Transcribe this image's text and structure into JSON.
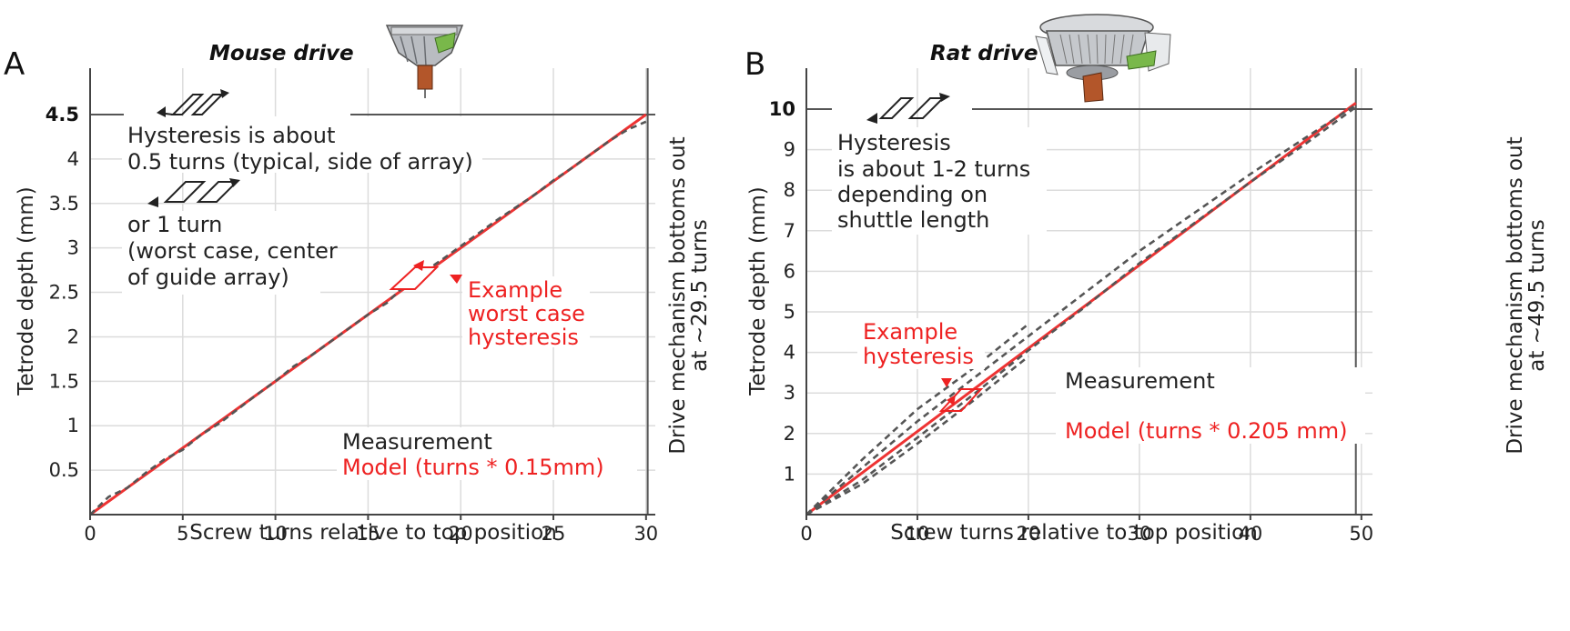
{
  "chart_data": [
    {
      "type": "line",
      "panel": "A",
      "title": "Mouse drive",
      "xlabel": "Screw turns relative to top position",
      "ylabel": "Tetrode depth (mm)",
      "xlim": [
        0,
        30.5
      ],
      "ylim": [
        0,
        4.5
      ],
      "xticks": [
        "0",
        "5",
        "10",
        "15",
        "20",
        "25",
        "30"
      ],
      "yticks": [
        "0.5",
        "1",
        "1.5",
        "2",
        "2.5",
        "3",
        "3.5",
        "4",
        "4.5"
      ],
      "bottom_out_label": "Drive mechanism bottoms out",
      "bottom_out_sub": "at ~29.5 turns",
      "bottom_out_turns": 29.5,
      "hysteresis_note": [
        "Hysteresis is about",
        "0.5 turns (typical, side of array)"
      ],
      "hysteresis_note2": [
        "or 1 turn",
        "(worst case, center",
        "of guide array)"
      ],
      "example_label": [
        "Example",
        "worst case",
        "hysteresis"
      ],
      "legend": {
        "measurement": "Measurement",
        "model": "Model (turns * 0.15mm)"
      },
      "series": [
        {
          "name": "Model (turns * 0.15mm)",
          "x": [
            0,
            30
          ],
          "y": [
            0,
            4.5
          ]
        },
        {
          "name": "Measurement",
          "x": [
            0,
            1,
            2,
            3,
            4,
            5,
            6,
            7,
            8,
            9,
            10,
            11,
            12,
            13,
            14,
            15,
            16,
            17,
            18,
            19,
            20,
            21,
            22,
            23,
            24,
            25,
            26,
            27,
            28,
            29,
            30
          ],
          "y": [
            0,
            0.2,
            0.3,
            0.47,
            0.62,
            0.73,
            0.9,
            1.03,
            1.19,
            1.35,
            1.5,
            1.67,
            1.8,
            1.95,
            2.1,
            2.25,
            2.38,
            2.58,
            2.73,
            2.87,
            3.02,
            3.17,
            3.32,
            3.46,
            3.6,
            3.76,
            3.9,
            4.05,
            4.2,
            4.33,
            4.42
          ]
        }
      ]
    },
    {
      "type": "line",
      "panel": "B",
      "title": "Rat drive",
      "xlabel": "Screw turns relative to top position",
      "ylabel": "Tetrode depth (mm)",
      "xlim": [
        0,
        51
      ],
      "ylim": [
        0,
        10
      ],
      "xticks": [
        "0",
        "10",
        "20",
        "30",
        "40",
        "50"
      ],
      "yticks": [
        "1",
        "2",
        "3",
        "4",
        "5",
        "6",
        "7",
        "8",
        "9",
        "10"
      ],
      "bottom_out_label": "Drive mechanism bottoms out",
      "bottom_out_sub": "at ~49.5 turns",
      "bottom_out_turns": 49.5,
      "hysteresis_note": [
        "Hysteresis",
        "is about 1-2 turns",
        "depending on",
        "shuttle  length"
      ],
      "example_label": [
        "Example",
        "hysteresis"
      ],
      "legend": {
        "measurement": "Measurement",
        "model": "Model (turns * 0.205 mm)"
      },
      "series": [
        {
          "name": "Model (turns * 0.205 mm)",
          "x": [
            0,
            49.5
          ],
          "y": [
            0,
            10.15
          ]
        },
        {
          "name": "Measurement",
          "x": [
            0,
            5,
            10,
            15,
            20,
            25,
            30,
            35,
            40,
            45,
            49.5
          ],
          "y": [
            0,
            1.15,
            2.3,
            3.35,
            4.4,
            5.45,
            6.5,
            7.45,
            8.4,
            9.3,
            10.1
          ]
        },
        {
          "name": "Measurement",
          "x": [
            0,
            5,
            10,
            15,
            20,
            25,
            30,
            35,
            40,
            45,
            49.5
          ],
          "y": [
            0,
            0.85,
            1.9,
            2.95,
            4.05,
            5.1,
            6.2,
            7.2,
            8.2,
            9.15,
            10.05
          ]
        },
        {
          "name": "Measurement",
          "x": [
            0,
            5,
            10,
            15,
            20
          ],
          "y": [
            0,
            0.75,
            1.75,
            2.8,
            3.9
          ]
        },
        {
          "name": "Measurement",
          "x": [
            0,
            5,
            10,
            15,
            20
          ],
          "y": [
            0,
            1.35,
            2.6,
            3.6,
            4.7
          ]
        }
      ]
    }
  ]
}
